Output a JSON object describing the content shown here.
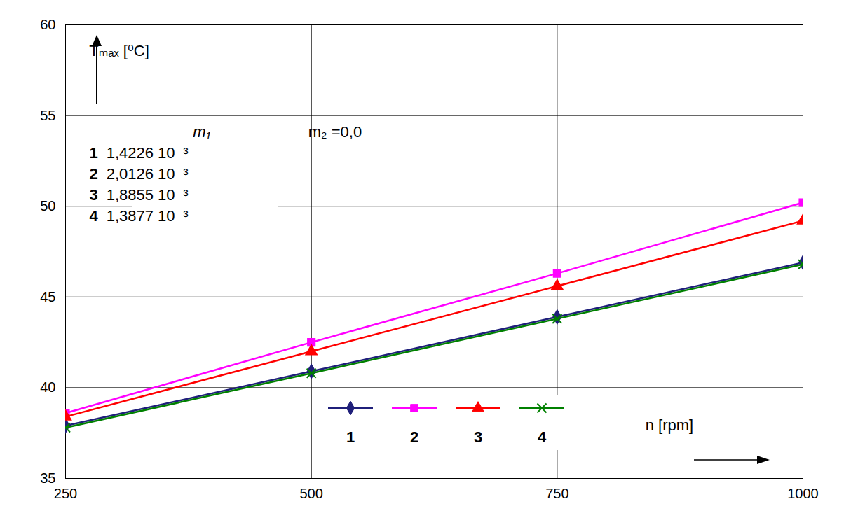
{
  "chart_data": {
    "type": "line",
    "xlabel": "n [rpm]",
    "ylabel": "Tₘₐₓ [⁰C]",
    "x": [
      250,
      500,
      750,
      1000
    ],
    "xlim": [
      250,
      1000
    ],
    "xticks": [
      250,
      500,
      750,
      1000
    ],
    "ylim": [
      35,
      60
    ],
    "yticks": [
      35,
      40,
      45,
      50,
      55,
      60
    ],
    "grid": true,
    "legend": "bottom",
    "annotations": [
      {
        "text": "m₁"
      },
      {
        "text": "m₂ =0,0"
      }
    ],
    "series": [
      {
        "name": "1",
        "color": "#1f1f7a",
        "marker": "diamond",
        "m1": "1,4226 10⁻³",
        "values": [
          37.9,
          40.9,
          43.9,
          46.9
        ]
      },
      {
        "name": "2",
        "color": "#ff00ff",
        "marker": "square",
        "m1": "2,0126 10⁻³",
        "values": [
          38.6,
          42.5,
          46.3,
          50.2
        ]
      },
      {
        "name": "3",
        "color": "#ff0000",
        "marker": "triangle",
        "m1": "1,8855 10⁻³",
        "values": [
          38.4,
          42.0,
          45.6,
          49.2
        ]
      },
      {
        "name": "4",
        "color": "#008000",
        "marker": "times",
        "m1": "1,3877 10⁻³",
        "values": [
          37.8,
          40.8,
          43.8,
          46.8
        ]
      }
    ]
  }
}
